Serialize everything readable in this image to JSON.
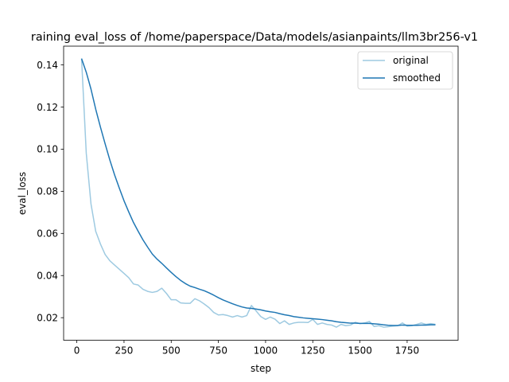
{
  "chart_data": {
    "type": "line",
    "title": "raining eval_loss of /home/paperspace/Data/models/asianpaints/llm3br256-v1",
    "xlabel": "step",
    "ylabel": "eval_loss",
    "xlim": [
      -70,
      2020
    ],
    "ylim": [
      0.0093,
      0.1489
    ],
    "xticks": [
      0,
      250,
      500,
      750,
      1000,
      1250,
      1500,
      1750
    ],
    "xtick_labels": [
      "0",
      "250",
      "500",
      "750",
      "1000",
      "1250",
      "1500",
      "1750"
    ],
    "yticks": [
      0.02,
      0.04,
      0.06,
      0.08,
      0.1,
      0.12,
      0.14
    ],
    "ytick_labels": [
      "0.02",
      "0.04",
      "0.06",
      "0.08",
      "0.10",
      "0.12",
      "0.14"
    ],
    "grid": false,
    "legend_position": "top-right",
    "series": [
      {
        "name": "original",
        "color": "#9ecae1",
        "x": [
          25,
          50,
          75,
          100,
          125,
          150,
          175,
          200,
          225,
          250,
          275,
          300,
          325,
          350,
          375,
          400,
          425,
          450,
          475,
          500,
          525,
          550,
          575,
          600,
          625,
          650,
          675,
          700,
          725,
          750,
          775,
          800,
          825,
          850,
          875,
          900,
          925,
          950,
          975,
          1000,
          1025,
          1050,
          1075,
          1100,
          1125,
          1150,
          1175,
          1200,
          1225,
          1250,
          1275,
          1300,
          1325,
          1350,
          1375,
          1400,
          1425,
          1450,
          1475,
          1500,
          1525,
          1550,
          1575,
          1600,
          1625,
          1650,
          1675,
          1700,
          1725,
          1750,
          1775,
          1800,
          1825,
          1850,
          1875,
          1900
        ],
        "y": [
          0.143,
          0.098,
          0.074,
          0.061,
          0.055,
          0.05,
          0.047,
          0.045,
          0.043,
          0.041,
          0.039,
          0.036,
          0.0355,
          0.0335,
          0.0325,
          0.032,
          0.0325,
          0.034,
          0.0315,
          0.0285,
          0.0285,
          0.027,
          0.0268,
          0.0268,
          0.029,
          0.028,
          0.0265,
          0.0248,
          0.0225,
          0.0213,
          0.0215,
          0.021,
          0.0203,
          0.021,
          0.0203,
          0.021,
          0.0258,
          0.0232,
          0.0205,
          0.0192,
          0.0203,
          0.0193,
          0.0172,
          0.0185,
          0.0168,
          0.0175,
          0.0178,
          0.0178,
          0.0177,
          0.0192,
          0.0168,
          0.0175,
          0.0168,
          0.0165,
          0.0155,
          0.0168,
          0.0162,
          0.0165,
          0.0178,
          0.0172,
          0.0175,
          0.0182,
          0.0158,
          0.0162,
          0.0155,
          0.0157,
          0.016,
          0.0162,
          0.0175,
          0.016,
          0.0162,
          0.0168,
          0.0175,
          0.0168,
          0.0172,
          0.0168
        ]
      },
      {
        "name": "smoothed",
        "color": "#1f77b4",
        "x": [
          25,
          50,
          75,
          100,
          125,
          150,
          175,
          200,
          225,
          250,
          275,
          300,
          325,
          350,
          375,
          400,
          425,
          450,
          475,
          500,
          525,
          550,
          575,
          600,
          625,
          650,
          675,
          700,
          725,
          750,
          775,
          800,
          825,
          850,
          875,
          900,
          925,
          950,
          975,
          1000,
          1025,
          1050,
          1075,
          1100,
          1125,
          1150,
          1175,
          1200,
          1225,
          1250,
          1275,
          1300,
          1325,
          1350,
          1375,
          1400,
          1425,
          1450,
          1475,
          1500,
          1525,
          1550,
          1575,
          1600,
          1625,
          1650,
          1675,
          1700,
          1725,
          1750,
          1775,
          1800,
          1825,
          1850,
          1875,
          1900
        ],
        "y": [
          0.143,
          0.1365,
          0.1285,
          0.119,
          0.1105,
          0.1025,
          0.0948,
          0.0878,
          0.0815,
          0.0755,
          0.0702,
          0.0652,
          0.061,
          0.057,
          0.0535,
          0.0502,
          0.0478,
          0.0458,
          0.0436,
          0.0415,
          0.0395,
          0.0377,
          0.0362,
          0.035,
          0.0343,
          0.0335,
          0.0328,
          0.0318,
          0.0307,
          0.0295,
          0.0284,
          0.0275,
          0.0266,
          0.0258,
          0.0251,
          0.0246,
          0.0244,
          0.0241,
          0.0237,
          0.0232,
          0.0228,
          0.0225,
          0.0219,
          0.0214,
          0.021,
          0.0205,
          0.0202,
          0.0199,
          0.0197,
          0.0195,
          0.0193,
          0.0191,
          0.0188,
          0.0185,
          0.0181,
          0.0178,
          0.0176,
          0.0174,
          0.0174,
          0.0173,
          0.0173,
          0.0173,
          0.0171,
          0.0169,
          0.0166,
          0.0164,
          0.0163,
          0.0163,
          0.0165,
          0.0164,
          0.0164,
          0.0164,
          0.0165,
          0.0165,
          0.0166,
          0.0166
        ]
      }
    ]
  }
}
